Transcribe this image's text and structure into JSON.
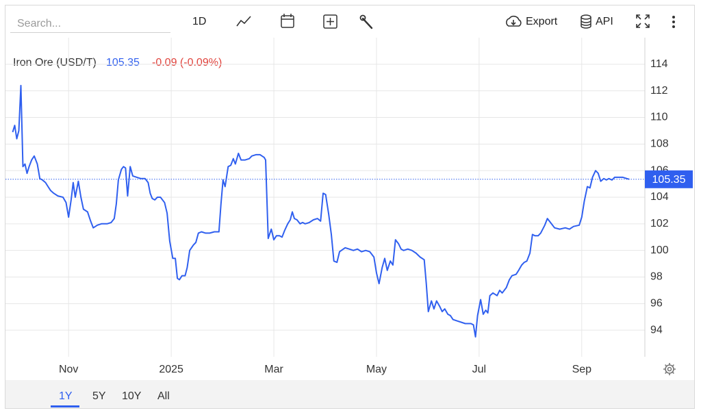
{
  "toolbar": {
    "search_placeholder": "Search...",
    "interval": "1D",
    "export": "Export",
    "api": "API"
  },
  "range_selector": {
    "buttons": [
      "1Y",
      "5Y",
      "10Y",
      "All"
    ],
    "active": 0
  },
  "chart_data": {
    "type": "line",
    "last_value_text": "105.35",
    "change_text": "-0.09 (-0.09%)",
    "x": [
      -1.09,
      -1.05,
      -1.01,
      -0.97,
      -0.93,
      -0.89,
      -0.85,
      -0.81,
      -0.77,
      -0.72,
      -0.67,
      -0.61,
      -0.56,
      -0.51,
      -0.45,
      -0.4,
      -0.35,
      -0.29,
      -0.21,
      -0.11,
      -0.05,
      0,
      0.05,
      0.09,
      0.13,
      0.19,
      0.24,
      0.29,
      0.37,
      0.43,
      0.48,
      0.56,
      0.64,
      0.75,
      0.83,
      0.89,
      0.93,
      0.97,
      1.03,
      1.07,
      1.11,
      1.15,
      1.2,
      1.25,
      1.33,
      1.41,
      1.49,
      1.55,
      1.59,
      1.63,
      1.68,
      1.73,
      1.79,
      1.87,
      1.92,
      1.97,
      2.03,
      2.08,
      2.12,
      2.16,
      2.21,
      2.27,
      2.31,
      2.36,
      2.43,
      2.48,
      2.53,
      2.59,
      2.67,
      2.75,
      2.84,
      2.93,
      2.97,
      3.01,
      3.05,
      3.11,
      3.16,
      3.21,
      3.25,
      3.31,
      3.36,
      3.44,
      3.52,
      3.57,
      3.65,
      3.73,
      3.81,
      3.84,
      3.89,
      3.95,
      4,
      4.05,
      4.11,
      4.16,
      4.21,
      4.27,
      4.32,
      4.36,
      4.4,
      4.45,
      4.51,
      4.56,
      4.61,
      4.69,
      4.77,
      4.85,
      4.91,
      4.96,
      5.01,
      5.07,
      5.12,
      5.17,
      5.23,
      5.28,
      5.39,
      5.47,
      5.55,
      5.63,
      5.71,
      5.79,
      5.87,
      5.95,
      6,
      6.05,
      6.11,
      6.16,
      6.21,
      6.27,
      6.32,
      6.37,
      6.43,
      6.48,
      6.53,
      6.61,
      6.69,
      6.77,
      6.85,
      6.93,
      6.97,
      7.01,
      7.07,
      7.12,
      7.17,
      7.23,
      7.28,
      7.33,
      7.39,
      7.44,
      7.49,
      7.57,
      7.65,
      7.73,
      7.84,
      7.89,
      7.93,
      7.97,
      8.03,
      8.08,
      8.13,
      8.17,
      8.21,
      8.27,
      8.35,
      8.4,
      8.45,
      8.53,
      8.59,
      8.64,
      8.72,
      8.77,
      8.83,
      8.88,
      8.93,
      8.99,
      9.04,
      9.09,
      9.15,
      9.2,
      9.28,
      9.33,
      9.39,
      9.47,
      9.57,
      9.68,
      9.76,
      9.84,
      9.95,
      10,
      10.05,
      10.11,
      10.16,
      10.21,
      10.27,
      10.32,
      10.37,
      10.43,
      10.48,
      10.53,
      10.59,
      10.64,
      10.72,
      10.8,
      10.88,
      10.93
    ],
    "series": [
      {
        "name": "Iron Ore (USD/T)",
        "color": "#2f5fef",
        "values": [
          108.9,
          109.4,
          108.4,
          109,
          112.4,
          106.3,
          106.5,
          105.8,
          106.3,
          106.8,
          107.1,
          106.5,
          105.4,
          105.3,
          105.1,
          104.8,
          104.5,
          104.3,
          104.1,
          104,
          103.6,
          102.5,
          103.8,
          105.1,
          104,
          105.2,
          104,
          103.1,
          102.9,
          102.2,
          101.7,
          101.9,
          102,
          102,
          102.1,
          102.4,
          103.5,
          105.3,
          106.1,
          106.3,
          106.2,
          104.1,
          106.3,
          105.6,
          105.5,
          105.4,
          105.4,
          105.1,
          104.3,
          103.9,
          103.8,
          104,
          104,
          103.6,
          102.8,
          100.7,
          99.4,
          99.4,
          97.9,
          97.8,
          98.1,
          98.1,
          98.7,
          100,
          100.4,
          100.6,
          101.3,
          101.4,
          101.3,
          101.3,
          101.4,
          101.4,
          103.5,
          105.3,
          104.8,
          106.3,
          106.4,
          106.9,
          106.5,
          107.3,
          106.8,
          106.8,
          106.9,
          107.1,
          107.2,
          107.2,
          107,
          106.8,
          100.9,
          101.6,
          100.8,
          101.1,
          101.1,
          101,
          101.5,
          102,
          102.3,
          102.9,
          102.4,
          102.3,
          102,
          102.1,
          102,
          102.1,
          102.3,
          102.4,
          102.2,
          104.3,
          104.2,
          102.7,
          101.2,
          99.2,
          99.1,
          99.9,
          100.2,
          100.1,
          100,
          100.1,
          99.9,
          100,
          99.9,
          99.5,
          98.3,
          97.5,
          98.7,
          99.4,
          98.5,
          99.2,
          98.9,
          100.8,
          100.5,
          100.1,
          100,
          100.1,
          100,
          99.8,
          99.5,
          99.3,
          97.5,
          95.4,
          96.2,
          95.6,
          96.2,
          95.8,
          95.4,
          95.6,
          95.2,
          95.1,
          94.8,
          94.7,
          94.6,
          94.5,
          94.5,
          94.4,
          93.5,
          95.1,
          96.3,
          95.2,
          95.5,
          95.3,
          96.6,
          96.8,
          96.6,
          97,
          96.8,
          97.2,
          97.8,
          98.1,
          98.2,
          98.5,
          98.9,
          99.1,
          99.2,
          99.8,
          101.2,
          101.1,
          101.1,
          101.3,
          101.9,
          102.4,
          102.1,
          101.7,
          101.6,
          101.7,
          101.6,
          101.8,
          101.9,
          102.5,
          103.7,
          104.8,
          104.7,
          105.5,
          106,
          105.8,
          105.2,
          105.4,
          105.3,
          105.4,
          105.3,
          105.5,
          105.5,
          105.5,
          105.4,
          105.35
        ]
      }
    ],
    "xlim": [
      -1.23,
      11.23
    ],
    "xticks": [
      {
        "value": 0,
        "label": "Nov"
      },
      {
        "value": 2,
        "label": "2025"
      },
      {
        "value": 4,
        "label": "Mar"
      },
      {
        "value": 6,
        "label": "May"
      },
      {
        "value": 8,
        "label": "Jul"
      },
      {
        "value": 10,
        "label": "Sep"
      }
    ],
    "ylim": [
      92,
      116
    ],
    "yticks": [
      94,
      96,
      98,
      100,
      102,
      104,
      106,
      108,
      110,
      112,
      114
    ],
    "grid": true
  }
}
